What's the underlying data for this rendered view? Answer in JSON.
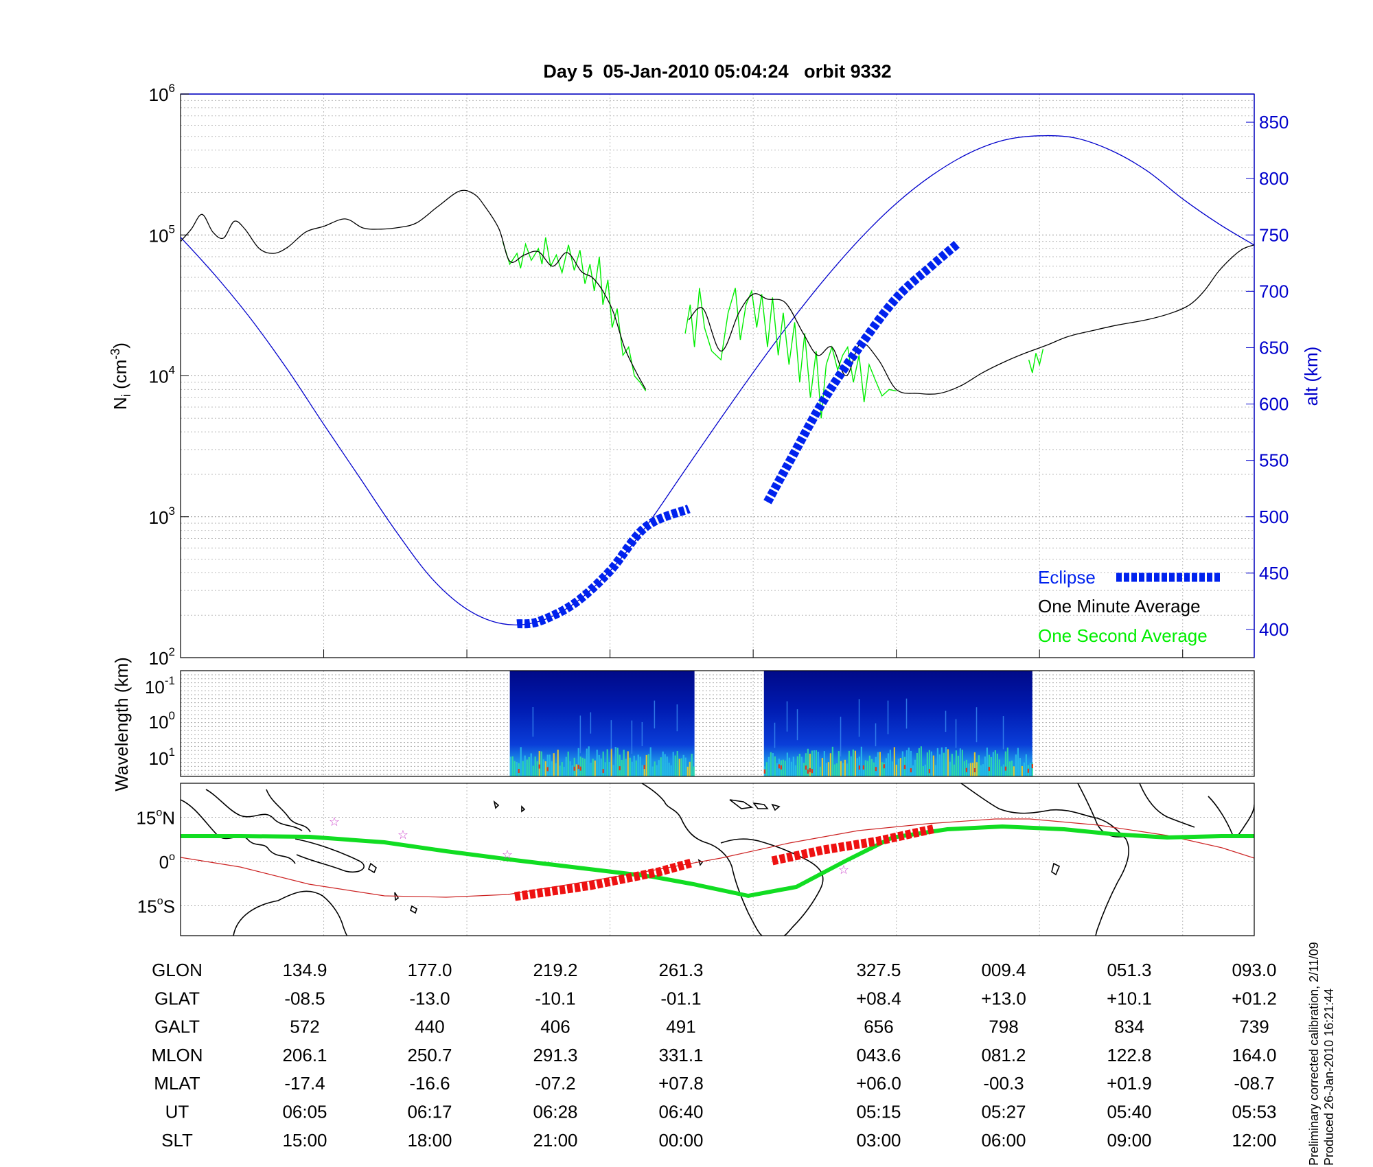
{
  "title": "Day 5  05-Jan-2010 05:04:24   orbit 9332",
  "footnote": [
    "Preliminary corrected calibration, 2/11/09",
    "Produced 26-Jan-2010 16:21:44"
  ],
  "colors": {
    "altitude": "#0000cc",
    "eclipse": "#0022ee",
    "minute": "#000000",
    "second": "#00ee00",
    "track": "#11dd22",
    "magnetic_equator": "#cc2222",
    "eclipse_track": "#ee1111",
    "stars": "#cc44cc"
  },
  "chart_data": [
    {
      "type": "line",
      "ylabel_main": "N",
      "ylabel_sub": "i",
      "ylabel_unit": "(cm",
      "ylabel_unit_exp": "-3",
      "ylabel_close": ")",
      "y_scale": "log",
      "ylim": [
        100,
        1000000
      ],
      "y_ticks": [
        {
          "base": "10",
          "exp": "2"
        },
        {
          "base": "10",
          "exp": "3"
        },
        {
          "base": "10",
          "exp": "4"
        },
        {
          "base": "10",
          "exp": "5"
        },
        {
          "base": "10",
          "exp": "6"
        }
      ],
      "y2label": "alt (km)",
      "y2lim": [
        375,
        875
      ],
      "y2_ticks": [
        "400",
        "450",
        "500",
        "550",
        "600",
        "650",
        "700",
        "750",
        "800",
        "850"
      ],
      "legend": {
        "position": "bottom-right",
        "eclipse": "Eclipse",
        "minute": "One Minute Average",
        "second": "One Second Average"
      },
      "series": [
        {
          "name": "One Minute Average",
          "axis": "left",
          "segments": [
            [
              [
                0,
                90000
              ],
              [
                0.15,
                110000
              ],
              [
                0.3,
                140000
              ],
              [
                0.45,
                105000
              ],
              [
                0.6,
                95000
              ],
              [
                0.75,
                125000
              ],
              [
                0.9,
                110000
              ],
              [
                1.1,
                80000
              ],
              [
                1.3,
                74000
              ],
              [
                1.5,
                82000
              ],
              [
                1.75,
                105000
              ],
              [
                2.0,
                115000
              ],
              [
                2.3,
                130000
              ],
              [
                2.55,
                112000
              ],
              [
                2.8,
                110000
              ],
              [
                3.05,
                113000
              ],
              [
                3.3,
                122000
              ],
              [
                3.6,
                160000
              ],
              [
                3.9,
                205000
              ],
              [
                4.1,
                195000
              ],
              [
                4.25,
                160000
              ],
              [
                4.45,
                110000
              ],
              [
                4.6,
                65000
              ],
              [
                4.8,
                72000
              ],
              [
                5.0,
                76000
              ],
              [
                5.2,
                60000
              ],
              [
                5.4,
                75000
              ],
              [
                5.6,
                55000
              ],
              [
                5.75,
                50000
              ],
              [
                5.9,
                40000
              ],
              [
                6.05,
                28000
              ],
              [
                6.2,
                16000
              ],
              [
                6.35,
                11000
              ],
              [
                6.5,
                8000
              ]
            ],
            [
              [
                7.1,
                25000
              ],
              [
                7.3,
                30000
              ],
              [
                7.55,
                15000
              ],
              [
                7.8,
                28000
              ],
              [
                8.0,
                38000
              ],
              [
                8.2,
                35000
              ],
              [
                8.45,
                33000
              ],
              [
                8.7,
                20000
              ],
              [
                8.9,
                14000
              ],
              [
                9.1,
                16000
              ],
              [
                9.3,
                10000
              ],
              [
                9.5,
                17000
              ],
              [
                9.75,
                13000
              ],
              [
                10.0,
                8000
              ],
              [
                10.3,
                7500
              ],
              [
                10.6,
                7500
              ],
              [
                10.9,
                8500
              ],
              [
                11.2,
                10500
              ],
              [
                11.5,
                12500
              ],
              [
                11.8,
                14500
              ],
              [
                12.1,
                16500
              ],
              [
                12.4,
                19000
              ],
              [
                12.75,
                21000
              ],
              [
                13.1,
                23000
              ],
              [
                13.5,
                25000
              ],
              [
                13.85,
                28000
              ],
              [
                14.1,
                32000
              ],
              [
                14.3,
                40000
              ],
              [
                14.5,
                55000
              ],
              [
                14.7,
                70000
              ],
              [
                14.85,
                80000
              ],
              [
                15.0,
                85000
              ]
            ]
          ]
        },
        {
          "name": "One Second Average",
          "axis": "left",
          "segments": [
            [
              [
                4.5,
                90000
              ],
              [
                4.6,
                62000
              ],
              [
                4.7,
                74000
              ],
              [
                4.75,
                58000
              ],
              [
                4.82,
                86000
              ],
              [
                4.9,
                66000
              ],
              [
                5.0,
                80000
              ],
              [
                5.05,
                62000
              ],
              [
                5.1,
                96000
              ],
              [
                5.17,
                60000
              ],
              [
                5.25,
                72000
              ],
              [
                5.33,
                54000
              ],
              [
                5.42,
                85000
              ],
              [
                5.5,
                56000
              ],
              [
                5.58,
                78000
              ],
              [
                5.65,
                45000
              ],
              [
                5.72,
                62000
              ],
              [
                5.78,
                40000
              ],
              [
                5.85,
                70000
              ],
              [
                5.9,
                32000
              ],
              [
                5.97,
                48000
              ],
              [
                6.03,
                22000
              ],
              [
                6.1,
                30000
              ],
              [
                6.18,
                14000
              ],
              [
                6.26,
                16000
              ],
              [
                6.34,
                10000
              ],
              [
                6.42,
                9000
              ],
              [
                6.5,
                7800
              ]
            ],
            [
              [
                7.05,
                20000
              ],
              [
                7.12,
                32000
              ],
              [
                7.18,
                16000
              ],
              [
                7.25,
                42000
              ],
              [
                7.32,
                22000
              ],
              [
                7.42,
                15000
              ],
              [
                7.55,
                13000
              ],
              [
                7.65,
                28000
              ],
              [
                7.75,
                42000
              ],
              [
                7.82,
                18000
              ],
              [
                7.9,
                32000
              ],
              [
                7.98,
                40000
              ],
              [
                8.05,
                22000
              ],
              [
                8.12,
                38000
              ],
              [
                8.2,
                16000
              ],
              [
                8.27,
                36000
              ],
              [
                8.35,
                14000
              ],
              [
                8.42,
                28000
              ],
              [
                8.5,
                12000
              ],
              [
                8.58,
                24000
              ],
              [
                8.65,
                9000
              ],
              [
                8.72,
                20000
              ],
              [
                8.8,
                7000
              ],
              [
                8.88,
                15000
              ],
              [
                8.95,
                5000
              ],
              [
                9.02,
                12000
              ],
              [
                9.1,
                16000
              ],
              [
                9.18,
                11000
              ],
              [
                9.25,
                14000
              ],
              [
                9.32,
                16000
              ],
              [
                9.4,
                9000
              ],
              [
                9.48,
                14000
              ],
              [
                9.55,
                6500
              ],
              [
                9.62,
                12000
              ],
              [
                9.7,
                9500
              ],
              [
                9.8,
                7200
              ],
              [
                9.9,
                8000
              ],
              [
                10.0,
                7800
              ]
            ],
            [
              [
                11.85,
                13000
              ],
              [
                11.9,
                10500
              ],
              [
                11.95,
                14500
              ],
              [
                12.0,
                12000
              ],
              [
                12.05,
                15500
              ]
            ]
          ]
        },
        {
          "name": "altitude",
          "axis": "right",
          "points": [
            [
              0,
              748
            ],
            [
              0.5,
              713
            ],
            [
              1.0,
              674
            ],
            [
              1.5,
              630
            ],
            [
              2.0,
              582
            ],
            [
              2.5,
              535
            ],
            [
              3.0,
              488
            ],
            [
              3.5,
              446
            ],
            [
              4.0,
              418
            ],
            [
              4.5,
              405
            ],
            [
              5.0,
              407
            ],
            [
              5.5,
              423
            ],
            [
              6.0,
              452
            ],
            [
              6.5,
              491
            ],
            [
              7.0,
              537
            ],
            [
              7.5,
              583
            ],
            [
              8.0,
              628
            ],
            [
              8.5,
              671
            ],
            [
              9.0,
              711
            ],
            [
              9.5,
              747
            ],
            [
              10.0,
              778
            ],
            [
              10.5,
              803
            ],
            [
              11.0,
              822
            ],
            [
              11.5,
              834
            ],
            [
              12.0,
              838
            ],
            [
              12.5,
              836
            ],
            [
              13.0,
              825
            ],
            [
              13.5,
              807
            ],
            [
              14.0,
              782
            ],
            [
              14.5,
              760
            ],
            [
              15.0,
              741
            ]
          ]
        }
      ],
      "eclipse_segments": [
        [
          [
            4.7,
            405
          ],
          [
            5.0,
            407
          ],
          [
            5.5,
            423
          ],
          [
            6.0,
            452
          ],
          [
            6.5,
            491
          ],
          [
            7.1,
            507
          ]
        ],
        [
          [
            8.2,
            513
          ],
          [
            8.5,
            548
          ],
          [
            9.0,
            605
          ],
          [
            9.5,
            652
          ],
          [
            10.0,
            694
          ],
          [
            10.5,
            723
          ],
          [
            10.85,
            742
          ]
        ]
      ]
    },
    {
      "type": "heatmap",
      "ylabel": "Wavelength (km)",
      "y_ticks": [
        {
          "base": "10",
          "exp": "-1"
        },
        {
          "base": "10",
          "exp": "0"
        },
        {
          "base": "10",
          "exp": "1"
        }
      ],
      "active_ranges": [
        [
          4.6,
          7.18
        ],
        [
          8.15,
          11.9
        ]
      ]
    },
    {
      "type": "map",
      "y_ticks": [
        {
          "label": "15",
          "deg": "o",
          "hem": "N"
        },
        {
          "label": "0",
          "deg": "o",
          "hem": ""
        },
        {
          "label": "15",
          "deg": "o",
          "hem": "S"
        }
      ],
      "y_values": [
        15,
        0,
        -15
      ]
    }
  ],
  "table": {
    "rows": [
      {
        "label": "GLON",
        "values": [
          "134.9",
          "177.0",
          "219.2",
          "261.3",
          "327.5",
          "009.4",
          "051.3",
          "093.0"
        ]
      },
      {
        "label": "GLAT",
        "values": [
          "-08.5",
          "-13.0",
          "-10.1",
          "-01.1",
          "+08.4",
          "+13.0",
          "+10.1",
          "+01.2"
        ]
      },
      {
        "label": "GALT",
        "values": [
          "572",
          "440",
          "406",
          "491",
          "656",
          "798",
          "834",
          "739"
        ]
      },
      {
        "label": "MLON",
        "values": [
          "206.1",
          "250.7",
          "291.3",
          "331.1",
          "043.6",
          "081.2",
          "122.8",
          "164.0"
        ]
      },
      {
        "label": "MLAT",
        "values": [
          "-17.4",
          "-16.6",
          "-07.2",
          "+07.8",
          "+06.0",
          "-00.3",
          "+01.9",
          "-08.7"
        ]
      },
      {
        "label": "UT",
        "values": [
          "06:05",
          "06:17",
          "06:28",
          "06:40",
          "05:15",
          "05:27",
          "05:40",
          "05:53"
        ]
      },
      {
        "label": "SLT",
        "values": [
          "15:00",
          "18:00",
          "21:00",
          "00:00",
          "03:00",
          "06:00",
          "09:00",
          "12:00"
        ]
      }
    ]
  }
}
